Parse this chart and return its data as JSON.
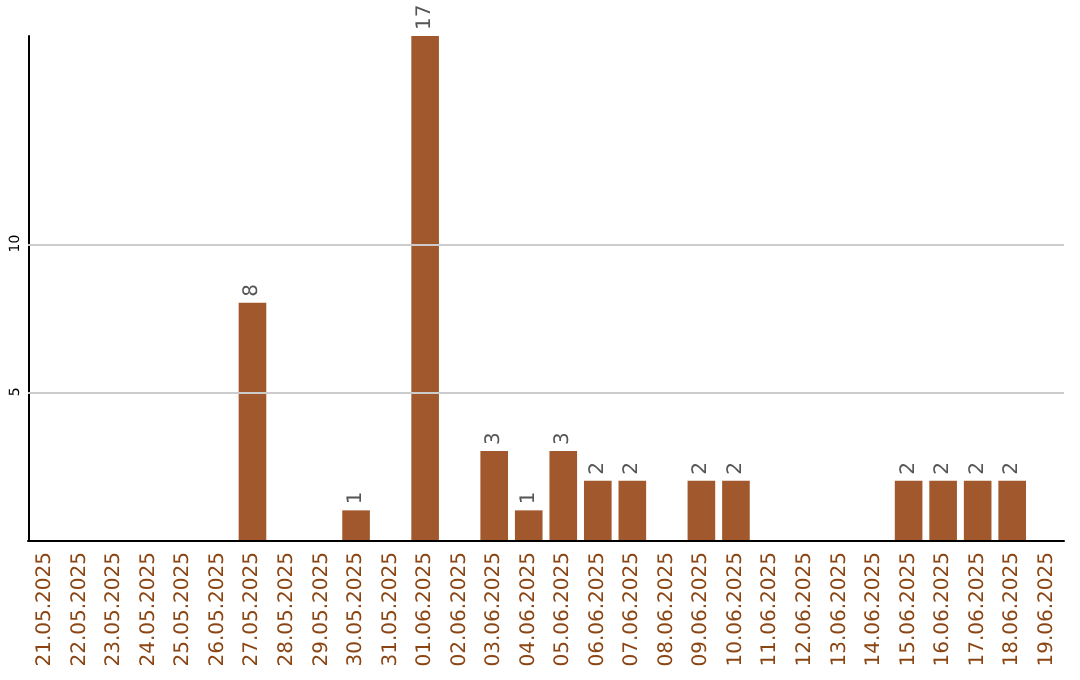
{
  "chart_data": {
    "type": "bar",
    "categories": [
      "21.05.2025",
      "22.05.2025",
      "23.05.2025",
      "24.05.2025",
      "25.05.2025",
      "26.05.2025",
      "27.05.2025",
      "28.05.2025",
      "29.05.2025",
      "30.05.2025",
      "31.05.2025",
      "01.06.2025",
      "02.06.2025",
      "03.06.2025",
      "04.06.2025",
      "05.06.2025",
      "06.06.2025",
      "07.06.2025",
      "08.06.2025",
      "09.06.2025",
      "10.06.2025",
      "11.06.2025",
      "12.06.2025",
      "13.06.2025",
      "14.06.2025",
      "15.06.2025",
      "16.06.2025",
      "17.06.2025",
      "18.06.2025",
      "19.06.2025"
    ],
    "values": [
      null,
      null,
      null,
      null,
      null,
      null,
      8,
      null,
      null,
      1,
      null,
      17,
      null,
      3,
      1,
      3,
      2,
      2,
      null,
      2,
      2,
      null,
      null,
      null,
      null,
      2,
      2,
      2,
      2,
      null
    ],
    "color": "#a0582c",
    "ylim": [
      0,
      17
    ],
    "yticks": [
      5,
      10
    ],
    "grid": "y",
    "data_labels": true
  }
}
